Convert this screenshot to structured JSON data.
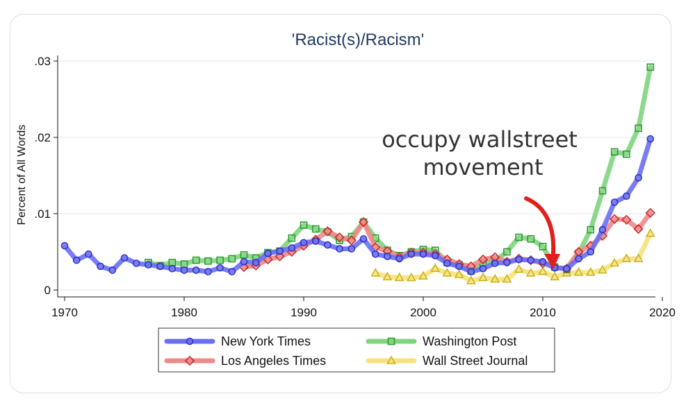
{
  "chart_data": {
    "type": "line",
    "title": "'Racist(s)/Racism'",
    "xlabel": "",
    "ylabel": "Percent of All Words",
    "xlim": [
      1970,
      2020
    ],
    "ylim": [
      0,
      0.03
    ],
    "x_ticks": [
      "1970",
      "1980",
      "1990",
      "2000",
      "2010",
      "2020"
    ],
    "y_ticks": [
      "0",
      ".01",
      ".02",
      ".03"
    ],
    "grid": true,
    "legend_placement": "bottom",
    "annotation": {
      "line1": "occupy wallstreet",
      "line2": "movement",
      "points_to_year": 2012
    },
    "series": [
      {
        "name": "New York Times",
        "color": "#6b6ff0",
        "marker_color": "#2a32c8",
        "marker": "circle",
        "x": [
          1970,
          1971,
          1972,
          1973,
          1974,
          1975,
          1976,
          1977,
          1978,
          1979,
          1980,
          1981,
          1982,
          1983,
          1984,
          1985,
          1986,
          1987,
          1988,
          1989,
          1990,
          1991,
          1992,
          1993,
          1994,
          1995,
          1996,
          1997,
          1998,
          1999,
          2000,
          2001,
          2002,
          2003,
          2004,
          2005,
          2006,
          2007,
          2008,
          2009,
          2010,
          2011,
          2012,
          2013,
          2014,
          2015,
          2016,
          2017,
          2018,
          2019
        ],
        "values": [
          0.0058,
          0.0039,
          0.0047,
          0.0031,
          0.0026,
          0.0042,
          0.0035,
          0.0033,
          0.0031,
          0.0028,
          0.0026,
          0.0026,
          0.0024,
          0.0029,
          0.0024,
          0.0037,
          0.0036,
          0.0048,
          0.0051,
          0.0055,
          0.0062,
          0.0064,
          0.0059,
          0.0054,
          0.0054,
          0.0067,
          0.0047,
          0.0044,
          0.0041,
          0.0047,
          0.0047,
          0.0045,
          0.0035,
          0.0031,
          0.0024,
          0.0028,
          0.0035,
          0.0036,
          0.004,
          0.0039,
          0.0037,
          0.0029,
          0.0028,
          0.0041,
          0.005,
          0.0079,
          0.0115,
          0.0123,
          0.0147,
          0.0198
        ]
      },
      {
        "name": "Washington Post",
        "color": "#7fd47f",
        "marker_color": "#2e9a2e",
        "marker": "square",
        "x": [
          1977,
          1978,
          1979,
          1980,
          1981,
          1982,
          1983,
          1984,
          1985,
          1986,
          1987,
          1988,
          1989,
          1990,
          1991,
          1992,
          1993,
          1994,
          1995,
          1996,
          1997,
          1998,
          1999,
          2000,
          2001,
          2002,
          2003,
          2004,
          2005,
          2006,
          2007,
          2008,
          2009,
          2010,
          2011,
          2012,
          2013,
          2014,
          2015,
          2016,
          2017,
          2018,
          2019
        ],
        "values": [
          0.0036,
          0.0032,
          0.0036,
          0.0034,
          0.0039,
          0.0038,
          0.0039,
          0.0041,
          0.0046,
          0.0042,
          0.0049,
          0.0051,
          0.0068,
          0.0085,
          0.008,
          0.0076,
          0.0065,
          0.007,
          0.0089,
          0.0068,
          0.0052,
          0.0045,
          0.005,
          0.0053,
          0.0052,
          0.0036,
          0.0033,
          0.0025,
          0.0035,
          0.0038,
          0.005,
          0.0069,
          0.0067,
          0.0057,
          0.003,
          0.0027,
          0.0048,
          0.0079,
          0.013,
          0.0181,
          0.0178,
          0.0212,
          0.0292
        ]
      },
      {
        "name": "Los Angeles Times",
        "color": "#ee8a8a",
        "marker_color": "#c62828",
        "marker": "diamond",
        "x": [
          1985,
          1986,
          1987,
          1988,
          1989,
          1990,
          1991,
          1992,
          1993,
          1994,
          1995,
          1996,
          1997,
          1998,
          1999,
          2000,
          2001,
          2002,
          2003,
          2004,
          2005,
          2006,
          2007,
          2008,
          2009,
          2010,
          2011,
          2012,
          2013,
          2014,
          2015,
          2016,
          2017,
          2018,
          2019
        ],
        "values": [
          0.003,
          0.0032,
          0.004,
          0.0044,
          0.005,
          0.0058,
          0.0066,
          0.0077,
          0.0069,
          0.0065,
          0.0089,
          0.0056,
          0.0051,
          0.0043,
          0.0049,
          0.0049,
          0.0047,
          0.004,
          0.0034,
          0.0031,
          0.004,
          0.0043,
          0.0037,
          0.0041,
          0.0039,
          0.0035,
          0.003,
          0.0028,
          0.005,
          0.0058,
          0.0071,
          0.0093,
          0.0092,
          0.008,
          0.0101
        ]
      },
      {
        "name": "Wall Street Journal",
        "color": "#f7e27a",
        "marker_color": "#c9b21a",
        "marker": "triangle",
        "x": [
          1996,
          1997,
          1998,
          1999,
          2000,
          2001,
          2002,
          2003,
          2004,
          2005,
          2006,
          2007,
          2008,
          2009,
          2010,
          2011,
          2012,
          2013,
          2014,
          2015,
          2016,
          2017,
          2018,
          2019
        ],
        "values": [
          0.0022,
          0.0017,
          0.0016,
          0.0016,
          0.0018,
          0.0028,
          0.0022,
          0.002,
          0.0012,
          0.0016,
          0.0014,
          0.0014,
          0.0027,
          0.0022,
          0.0024,
          0.0017,
          0.0022,
          0.0023,
          0.0023,
          0.0026,
          0.0035,
          0.0041,
          0.0041,
          0.0074
        ]
      }
    ]
  }
}
